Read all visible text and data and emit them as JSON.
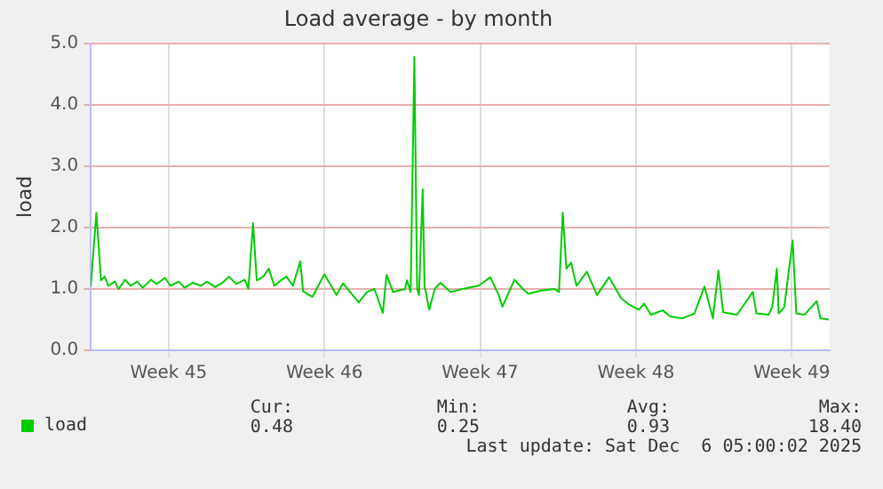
{
  "chart_data": {
    "type": "line",
    "title": "Load average - by month",
    "ylabel": "load",
    "x": [
      "2025-11-03T00:00",
      "2025-11-03T06:00",
      "2025-11-03T11:00",
      "2025-11-03T15:00",
      "2025-11-03T19:00",
      "2025-11-04T02:00",
      "2025-11-04T06:00",
      "2025-11-04T13:00",
      "2025-11-04T19:00",
      "2025-11-05T02:00",
      "2025-11-05T08:00",
      "2025-11-05T17:00",
      "2025-11-05T23:00",
      "2025-11-06T08:00",
      "2025-11-06T14:00",
      "2025-11-06T23:00",
      "2025-11-07T05:00",
      "2025-11-07T14:00",
      "2025-11-07T23:00",
      "2025-11-08T05:00",
      "2025-11-08T14:00",
      "2025-11-08T22:00",
      "2025-11-09T05:00",
      "2025-11-09T13:00",
      "2025-11-09T22:00",
      "2025-11-10T02:00",
      "2025-11-10T07:00",
      "2025-11-10T11:00",
      "2025-11-10T18:00",
      "2025-11-11T00:00",
      "2025-11-11T06:00",
      "2025-11-11T13:00",
      "2025-11-11T19:00",
      "2025-11-12T02:00",
      "2025-11-12T10:00",
      "2025-11-12T13:00",
      "2025-11-12T23:00",
      "2025-11-13T12:00",
      "2025-11-14T01:00",
      "2025-11-14T08:00",
      "2025-11-15T01:00",
      "2025-11-15T10:00",
      "2025-11-15T18:00",
      "2025-11-16T03:00",
      "2025-11-16T07:00",
      "2025-11-16T14:00",
      "2025-11-17T03:00",
      "2025-11-17T05:00",
      "2025-11-17T09:00",
      "2025-11-17T13:00",
      "2025-11-17T16:00",
      "2025-11-17T18:00",
      "2025-11-17T22:00",
      "2025-11-18T00:00",
      "2025-11-18T05:00",
      "2025-11-18T11:00",
      "2025-11-18T17:00",
      "2025-11-19T04:00",
      "2025-11-19T17:00",
      "2025-11-20T10:00",
      "2025-11-20T23:00",
      "2025-11-21T08:00",
      "2025-11-21T12:00",
      "2025-11-22T01:00",
      "2025-11-22T10:00",
      "2025-11-22T16:00",
      "2025-11-23T05:00",
      "2025-11-23T20:00",
      "2025-11-24T01:00",
      "2025-11-24T05:00",
      "2025-11-24T09:00",
      "2025-11-24T14:00",
      "2025-11-24T20:00",
      "2025-11-25T07:00",
      "2025-11-25T18:00",
      "2025-11-26T07:00",
      "2025-11-26T20:00",
      "2025-11-27T04:00",
      "2025-11-27T15:00",
      "2025-11-27T21:00",
      "2025-11-28T04:00",
      "2025-11-28T17:00",
      "2025-11-29T01:00",
      "2025-11-29T14:00",
      "2025-11-30T03:00",
      "2025-11-30T14:00",
      "2025-11-30T23:00",
      "2025-12-01T05:00",
      "2025-12-01T10:00",
      "2025-12-02T01:00",
      "2025-12-02T18:00",
      "2025-12-02T22:00",
      "2025-12-03T11:00",
      "2025-12-03T15:00",
      "2025-12-03T20:00",
      "2025-12-03T22:00",
      "2025-12-04T04:00",
      "2025-12-04T13:00",
      "2025-12-04T17:00",
      "2025-12-05T02:00",
      "2025-12-05T15:00",
      "2025-12-05T19:00",
      "2025-12-06T04:00"
    ],
    "series": [
      {
        "name": "load",
        "color": "#00cc00",
        "values": [
          1.04,
          2.24,
          1.14,
          1.2,
          1.05,
          1.12,
          1.0,
          1.15,
          1.05,
          1.12,
          1.02,
          1.15,
          1.08,
          1.18,
          1.05,
          1.12,
          1.02,
          1.1,
          1.05,
          1.12,
          1.03,
          1.1,
          1.2,
          1.08,
          1.15,
          1.0,
          2.07,
          1.14,
          1.2,
          1.33,
          1.05,
          1.14,
          1.2,
          1.05,
          1.45,
          0.96,
          0.87,
          1.24,
          0.9,
          1.09,
          0.78,
          0.95,
          1.0,
          0.61,
          1.23,
          0.95,
          1.0,
          1.14,
          0.95,
          4.78,
          1.0,
          0.9,
          2.62,
          1.05,
          0.66,
          1.0,
          1.1,
          0.95,
          1.0,
          1.05,
          1.19,
          0.9,
          0.71,
          1.15,
          1.0,
          0.92,
          0.97,
          1.0,
          0.95,
          2.24,
          1.33,
          1.43,
          1.05,
          1.28,
          0.9,
          1.19,
          0.85,
          0.75,
          0.66,
          0.76,
          0.58,
          0.65,
          0.55,
          0.52,
          0.6,
          1.04,
          0.52,
          1.3,
          0.62,
          0.58,
          0.95,
          0.6,
          0.58,
          0.7,
          1.33,
          0.6,
          0.7,
          1.79,
          0.6,
          0.58,
          0.8,
          0.52,
          0.5
        ]
      }
    ],
    "xlim": [
      "2025-11-03T00:00",
      "2025-12-06T05:00"
    ],
    "xticks": [
      {
        "value": "2025-11-06T12:00",
        "label": "Week 45"
      },
      {
        "value": "2025-11-13T12:00",
        "label": "Week 46"
      },
      {
        "value": "2025-11-20T12:00",
        "label": "Week 47"
      },
      {
        "value": "2025-11-27T12:00",
        "label": "Week 48"
      },
      {
        "value": "2025-12-04T12:00",
        "label": "Week 49"
      }
    ],
    "ylim": [
      0,
      5
    ],
    "yticks": [
      {
        "value": 0,
        "label": "0.0"
      },
      {
        "value": 1,
        "label": "1.0"
      },
      {
        "value": 2,
        "label": "2.0"
      },
      {
        "value": 3,
        "label": "3.0"
      },
      {
        "value": 4,
        "label": "4.0"
      },
      {
        "value": 5,
        "label": "5.0"
      }
    ],
    "grid": true,
    "legend": "bottom left",
    "marker": "none",
    "line_style": "solid",
    "annotations": [
      "Cur:",
      "Min:",
      "Avg:",
      "Max:",
      "0.48",
      "0.25",
      "0.93",
      "18.40",
      "Last update: Sat Dec  6 05:00:02 2025"
    ]
  }
}
